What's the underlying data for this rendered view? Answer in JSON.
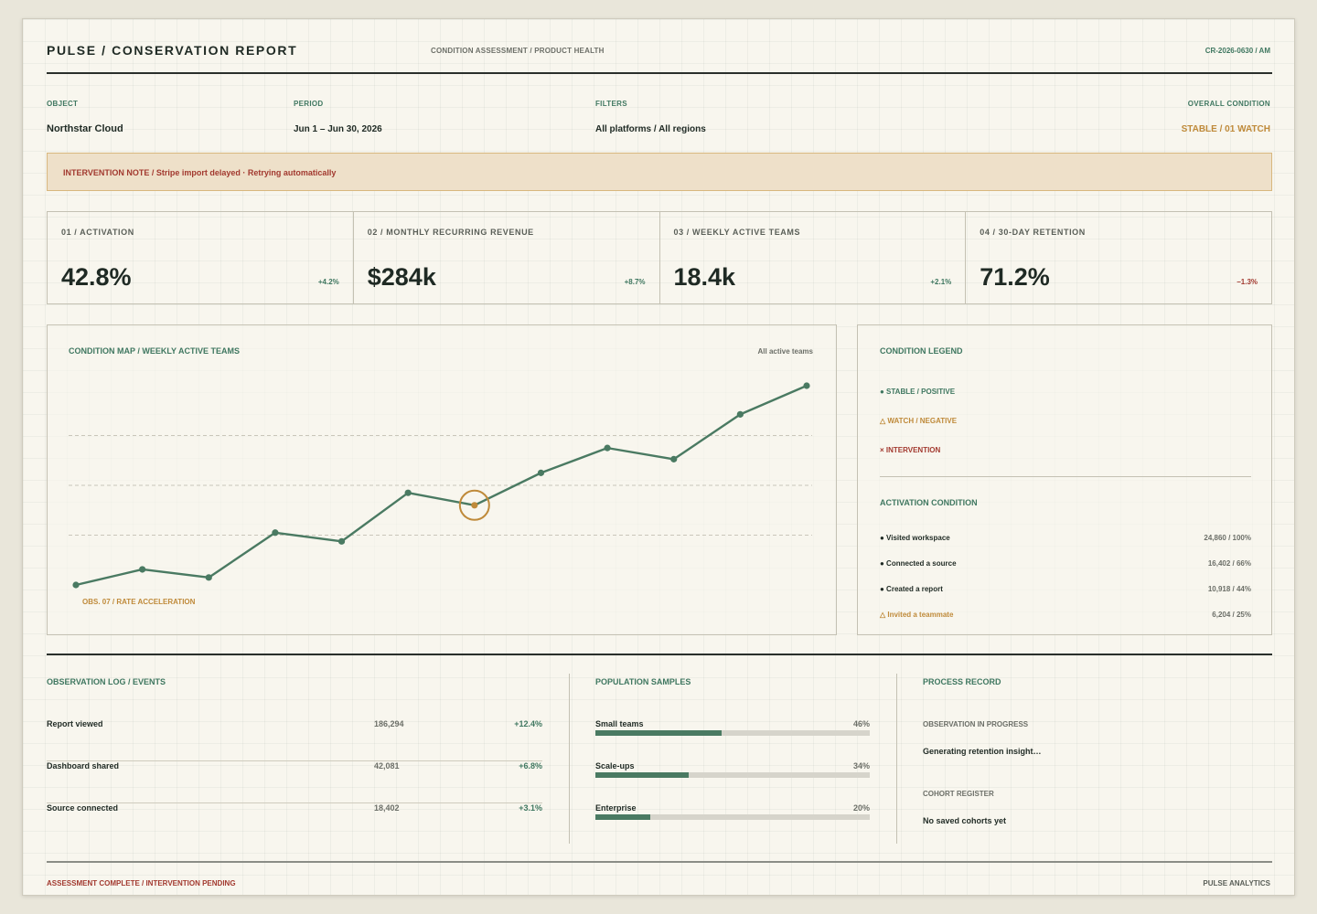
{
  "header": {
    "title": "PULSE / CONSERVATION REPORT",
    "subtitle": "CONDITION ASSESSMENT / PRODUCT HEALTH",
    "report_id": "CR-2026-0630 / AM"
  },
  "meta": {
    "object_label": "OBJECT",
    "object_value": "Northstar Cloud",
    "period_label": "PERIOD",
    "period_value": "Jun 1 – Jun 30, 2026",
    "filters_label": "FILTERS",
    "filters_value": "All platforms / All regions",
    "condition_label": "OVERALL CONDITION",
    "condition_value": "STABLE / 01 WATCH"
  },
  "banner": {
    "text": "INTERVENTION NOTE / Stripe import delayed · Retrying automatically"
  },
  "kpis": [
    {
      "label": "01 / ACTIVATION",
      "value": "42.8%",
      "delta": "+4.2%",
      "trend": "positive"
    },
    {
      "label": "02 / MONTHLY RECURRING REVENUE",
      "value": "$284k",
      "delta": "+8.7%",
      "trend": "positive"
    },
    {
      "label": "03 / WEEKLY ACTIVE TEAMS",
      "value": "18.4k",
      "delta": "+2.1%",
      "trend": "positive"
    },
    {
      "label": "04 / 30-DAY RETENTION",
      "value": "71.2%",
      "delta": "−1.3%",
      "trend": "negative"
    }
  ],
  "chart_panel": {
    "title": "CONDITION MAP / WEEKLY ACTIVE TEAMS",
    "filter": "All active teams",
    "annotation": "OBS. 07 / RATE ACCELERATION"
  },
  "chart_data": {
    "type": "line",
    "title": "CONDITION MAP / WEEKLY ACTIVE TEAMS",
    "x": [
      1,
      2,
      3,
      4,
      5,
      6,
      7,
      8,
      9,
      10,
      11,
      12
    ],
    "series": [
      {
        "values": [
          0.0,
          1.25,
          0.6,
          4.2,
          3.5,
          7.4,
          6.4,
          9.0,
          11.0,
          10.1,
          13.7,
          16.0
        ]
      }
    ],
    "highlight_index": 6,
    "ylim": [
      0,
      16
    ],
    "grid": true,
    "colors": {
      "line": "#4a7a62",
      "highlight": "#bf8a3a"
    }
  },
  "legend": {
    "title": "CONDITION LEGEND",
    "items": [
      {
        "label": "● STABLE / POSITIVE",
        "color": "#3f7760"
      },
      {
        "label": "△ WATCH / NEGATIVE",
        "color": "#bf8a3a"
      },
      {
        "label": "× INTERVENTION",
        "color": "#a2392f"
      }
    ],
    "activation_title": "ACTIVATION CONDITION",
    "activation": [
      {
        "name": "● Visited workspace",
        "value": "24,860 / 100%",
        "state": "stable"
      },
      {
        "name": "● Connected a source",
        "value": "16,402 / 66%",
        "state": "stable"
      },
      {
        "name": "● Created a report",
        "value": "10,918 / 44%",
        "state": "stable"
      },
      {
        "name": "△ Invited a teammate",
        "value": "6,204 / 25%",
        "state": "watch"
      }
    ]
  },
  "events": {
    "title": "OBSERVATION LOG / EVENTS",
    "rows": [
      {
        "name": "Report viewed",
        "count": "186,294",
        "delta": "+12.4%"
      },
      {
        "name": "Dashboard shared",
        "count": "42,081",
        "delta": "+6.8%"
      },
      {
        "name": "Source connected",
        "count": "18,402",
        "delta": "+3.1%"
      }
    ]
  },
  "population": {
    "title": "POPULATION SAMPLES",
    "rows": [
      {
        "name": "Small teams",
        "pct_label": "46%",
        "fraction": 0.46
      },
      {
        "name": "Scale-ups",
        "pct_label": "34%",
        "fraction": 0.34
      },
      {
        "name": "Enterprise",
        "pct_label": "20%",
        "fraction": 0.2
      }
    ]
  },
  "process": {
    "title": "PROCESS RECORD",
    "in_progress_label": "OBSERVATION IN PROGRESS",
    "in_progress_value": "Generating retention insight…",
    "cohort_label": "COHORT REGISTER",
    "cohort_value": "No saved cohorts yet"
  },
  "footer": {
    "status": "ASSESSMENT COMPLETE / INTERVENTION PENDING",
    "brand": "PULSE ANALYTICS"
  }
}
